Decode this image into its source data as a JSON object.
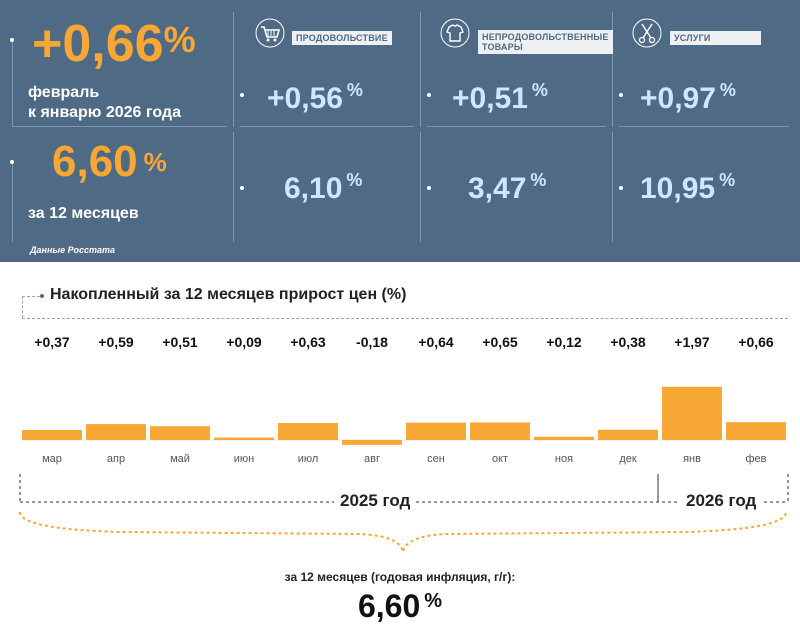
{
  "summary": {
    "month_value": "+0,66",
    "month_unit": "%",
    "month_line1": "февраль",
    "month_line2": "к январю 2026 года",
    "year_value": "6,60",
    "year_unit": "%",
    "year_label": "за 12 месяцев"
  },
  "categories": [
    {
      "label_line1": "ПРОДОВОЛЬСТВИЕ",
      "label_line2": "",
      "month_value": "+0,56",
      "year_value": "6,10",
      "icon": "shopping-cart-icon"
    },
    {
      "label_line1": "НЕПРОДОВОЛЬСТВЕННЫЕ",
      "label_line2": "ТОВАРЫ",
      "month_value": "+0,51",
      "year_value": "3,47",
      "icon": "clothes-icon"
    },
    {
      "label_line1": "УСЛУГИ",
      "label_line2": "",
      "month_value": "+0,97",
      "year_value": "10,95",
      "icon": "scissors-icon"
    }
  ],
  "unit": "%",
  "source": "Данные Росстата",
  "chart_data": {
    "type": "bar",
    "title": "Накопленный за 12 месяцев прирост цен (%)",
    "categories": [
      "мар",
      "апр",
      "май",
      "июн",
      "июл",
      "авг",
      "сен",
      "окт",
      "ноя",
      "дек",
      "янв",
      "фев"
    ],
    "values": [
      0.37,
      0.59,
      0.51,
      0.09,
      0.63,
      -0.18,
      0.64,
      0.65,
      0.12,
      0.38,
      1.97,
      0.66
    ],
    "labels": [
      "+0,37",
      "+0,59",
      "+0,51",
      "+0,09",
      "+0,63",
      "-0,18",
      "+0,64",
      "+0,65",
      "+0,12",
      "+0,38",
      "+1,97",
      "+0,66"
    ],
    "years": [
      "2025 год",
      "2026 год"
    ],
    "year_split_index": 10,
    "bar_color": "#f7a734",
    "grid": false
  },
  "footer": {
    "label": "за 12 месяцев (годовая инфляция, г/г):",
    "value": "6,60",
    "unit": "%"
  },
  "colors": {
    "panel": "#4f6a85",
    "orange": "#f7a734",
    "light_blue": "#cfe6ff"
  }
}
